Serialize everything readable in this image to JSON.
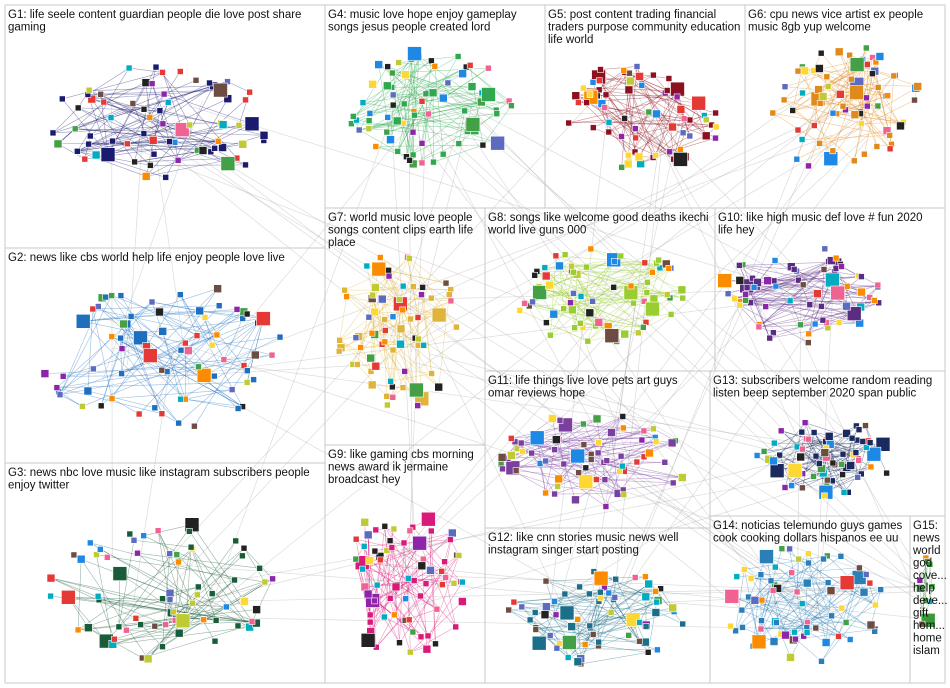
{
  "groups": [
    {
      "id": "G1",
      "label_lines": [
        "G1: life seele content guardian people die love post share",
        "gaming"
      ],
      "color": "#1a1a6e"
    },
    {
      "id": "G2",
      "label_lines": [
        "G2: news like cbs world help life enjoy people love live"
      ],
      "color": "#1f6fbf"
    },
    {
      "id": "G3",
      "label_lines": [
        "G3: news nbc love music like instagram subscribers people",
        "enjoy twitter"
      ],
      "color": "#1a5c3a"
    },
    {
      "id": "G4",
      "label_lines": [
        "G4: music love hope enjoy gameplay",
        "songs jesus people created lord"
      ],
      "color": "#2fa84f"
    },
    {
      "id": "G5",
      "label_lines": [
        "G5: post content trading financial",
        "traders purpose community education",
        "life world"
      ],
      "color": "#8b1020"
    },
    {
      "id": "G6",
      "label_lines": [
        "G6: cpu news vice artist ex people",
        "music 8gb yup welcome"
      ],
      "color": "#e08a1c"
    },
    {
      "id": "G7",
      "label_lines": [
        "G7: world music love people",
        "songs content clips earth life",
        "place"
      ],
      "color": "#e0b43a"
    },
    {
      "id": "G8",
      "label_lines": [
        "G8: songs like welcome good deaths ikechi",
        "world live guns 000"
      ],
      "color": "#9acd32"
    },
    {
      "id": "G9",
      "label_lines": [
        "G9: like gaming cbs morning",
        "news award ik jermaine",
        "broadcast hey"
      ],
      "color": "#d81b7a"
    },
    {
      "id": "G10",
      "label_lines": [
        "G10: like high music def love # fun 2020",
        "life hey"
      ],
      "color": "#5a2d82"
    },
    {
      "id": "G11",
      "label_lines": [
        "G11: life things live love pets art guys",
        "omar reviews hope"
      ],
      "color": "#7b3fa0"
    },
    {
      "id": "G12",
      "label_lines": [
        "G12: like cnn stories music news well",
        "instagram singer start posting"
      ],
      "color": "#1c6f8a"
    },
    {
      "id": "G13",
      "label_lines": [
        "G13: subscribers welcome random reading",
        "listen beep september 2020 span public"
      ],
      "color": "#1a2a5e"
    },
    {
      "id": "G14",
      "label_lines": [
        "G14: noticias telemundo guys games",
        "cook cooking dollars hispanos ee uu"
      ],
      "color": "#2a7fb8"
    },
    {
      "id": "G15",
      "label_lines": [
        "G15:",
        "news",
        "world",
        "god",
        "cove...",
        "help",
        "deve...",
        "gift",
        "hom...",
        "home",
        "islam"
      ],
      "color": "#3a9a3a"
    }
  ]
}
